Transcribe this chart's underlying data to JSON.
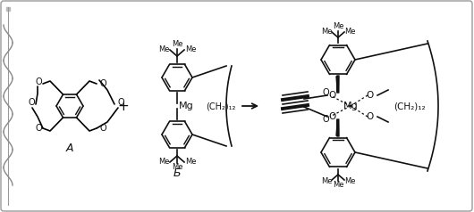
{
  "bg_color": "#ffffff",
  "border_color": "#aaaaaa",
  "label_A": "A",
  "label_B": "Б",
  "ch2_12": "(CH₂)₁₂",
  "mg": "Mg",
  "me": "Me",
  "o": "O",
  "plus": "+",
  "arrow": "→",
  "figsize": [
    5.3,
    2.38
  ],
  "dpi": 100
}
